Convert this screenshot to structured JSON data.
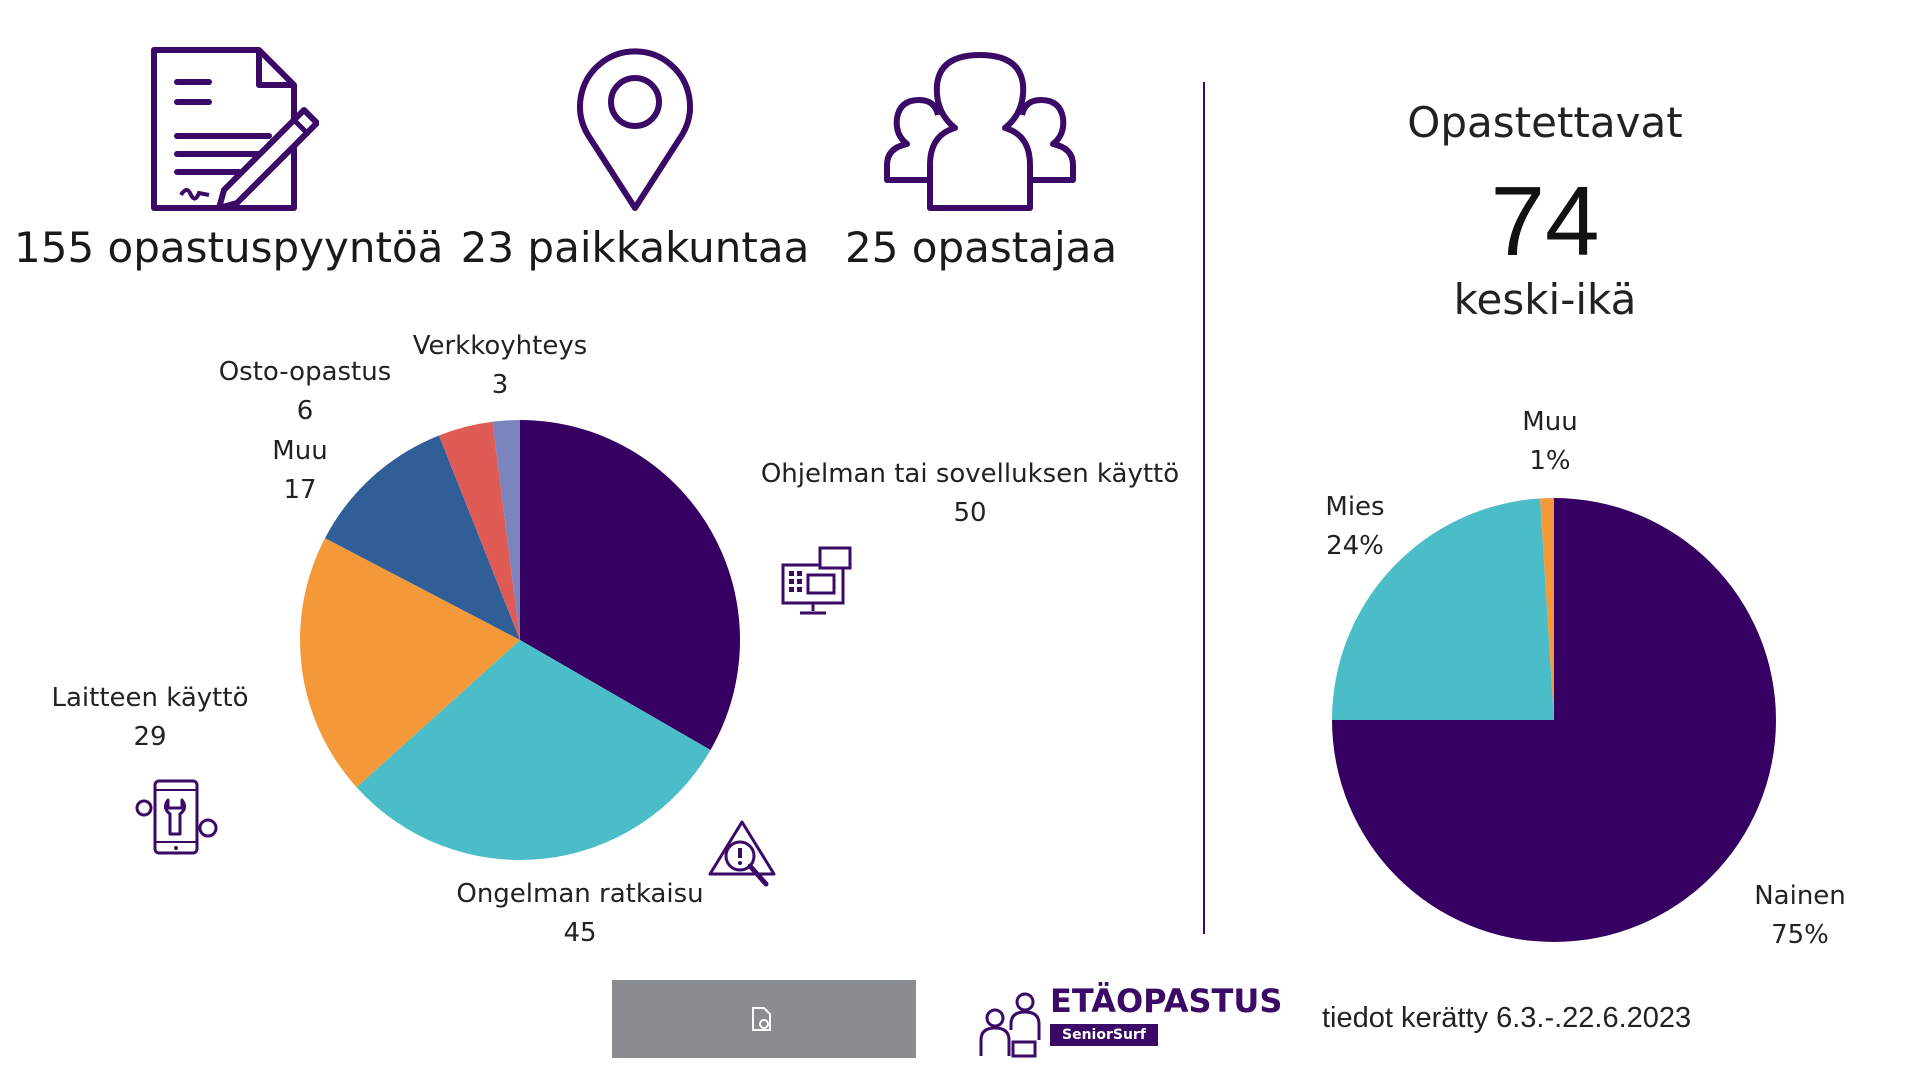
{
  "stats": {
    "requests": "155 opastuspyyntöä",
    "places": "23 paikkakuntaa",
    "guides": "25 opastajaa"
  },
  "right": {
    "title": "Opastettavat",
    "age_value": "74",
    "age_label": "keski-ikä"
  },
  "chart_data": [
    {
      "type": "pie",
      "title": "",
      "categories": [
        "Ohjelman tai sovelluksen käyttö",
        "Ongelman ratkaisu",
        "Laitteen käyttö",
        "Muu",
        "Osto-opastus",
        "Verkkoyhteys"
      ],
      "values": [
        50,
        45,
        29,
        17,
        6,
        3
      ],
      "colors": [
        "#350061",
        "#4bbdc8",
        "#f3993a",
        "#2f5f96",
        "#e05b55",
        "#7b84bd"
      ],
      "extra_slice_color": "#6a4a8f"
    },
    {
      "type": "pie",
      "title": "",
      "categories": [
        "Nainen",
        "Mies",
        "Muu"
      ],
      "values": [
        75,
        24,
        1
      ],
      "value_labels": [
        "75%",
        "24%",
        "1%"
      ],
      "colors": [
        "#350061",
        "#4bbdc8",
        "#f3993a"
      ]
    }
  ],
  "icons": {
    "requests": "document-signature-icon",
    "places": "location-pin-icon",
    "guides": "group-icon",
    "software": "computer-apps-icon",
    "problem": "warning-magnifier-icon",
    "device": "phone-gears-icon",
    "footer": "document-icon",
    "brand": "people-support-icon"
  },
  "footer": {
    "brand_name": "ETÄOPASTUS",
    "brand_sub": "SeniorSurf",
    "collected": "tiedot kerätty 6.3.-.22.6.2023"
  }
}
